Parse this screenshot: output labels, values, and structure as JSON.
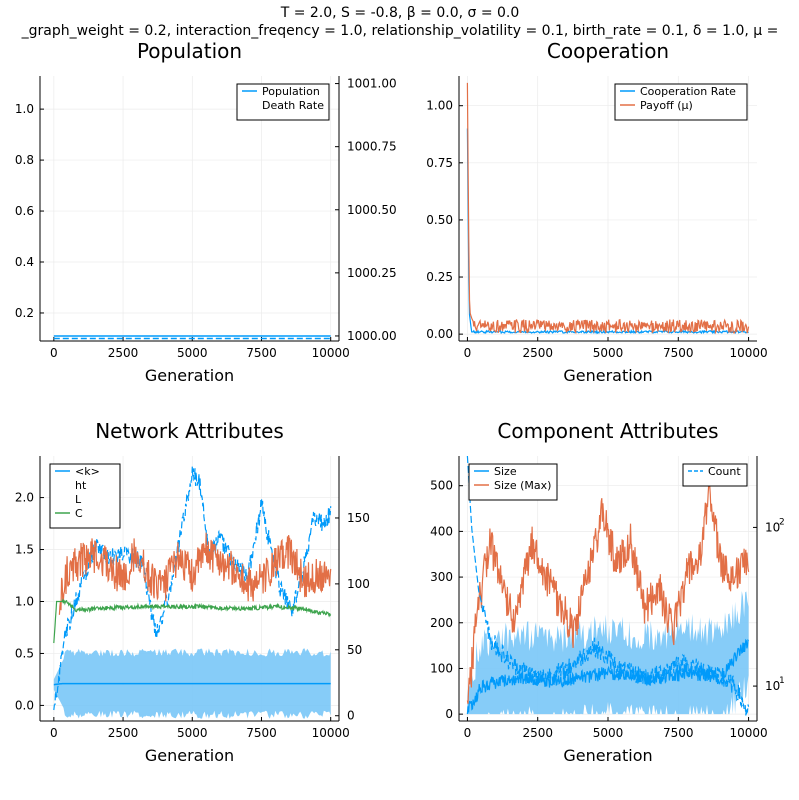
{
  "figure": {
    "suptitle_line1": "T = 2.0, S = -0.8, β = 0.0, σ = 0.0",
    "suptitle_line2": "_graph_weight = 0.2, interaction_freqency = 1.0, relationship_volatility = 0.1, birth_rate = 0.1, δ = 1.0, μ ="
  },
  "colors": {
    "blue": "#009AFA",
    "orange": "#E26F46",
    "green": "#3DA44D",
    "band": "#79C7F7",
    "grid": "#EBEBEB"
  },
  "chart_data": [
    {
      "id": "population",
      "type": "line",
      "title": "Population",
      "xlabel": "Generation",
      "xlim": [
        -500,
        10300
      ],
      "xticks": [
        0,
        2500,
        5000,
        7500,
        10000
      ],
      "ylim_left": [
        0.09,
        1.13
      ],
      "yticks_left": [
        0.2,
        0.4,
        0.6,
        0.8,
        1.0
      ],
      "ytick_labels_left": [
        "0.2",
        "0.4",
        "0.6",
        "0.8",
        "1.0"
      ],
      "ylim_right": [
        999.98,
        1001.03
      ],
      "yticks_right": [
        1000.0,
        1000.25,
        1000.5,
        1000.75,
        1001.0
      ],
      "ytick_labels_right": [
        "1000.00",
        "1000.25",
        "1000.50",
        "1000.75",
        "1001.00"
      ],
      "legend": {
        "position": "top-right",
        "entries": [
          "Population",
          "Death Rate"
        ]
      },
      "series": [
        {
          "name": "Population",
          "axis": "right",
          "style": "solid",
          "color": "#009AFA",
          "x": [
            0,
            10000
          ],
          "y": [
            1000.0,
            1000.0
          ]
        },
        {
          "name": "Death Rate",
          "axis": "left",
          "style": "dash",
          "color": "#009AFA",
          "x": [
            0,
            10000
          ],
          "y": [
            0.1,
            0.1
          ]
        }
      ]
    },
    {
      "id": "cooperation",
      "type": "line",
      "title": "Cooperation",
      "xlabel": "Generation",
      "xlim": [
        -300,
        10300
      ],
      "xticks": [
        0,
        2500,
        5000,
        7500,
        10000
      ],
      "ylim_left": [
        -0.03,
        1.13
      ],
      "yticks_left": [
        0.0,
        0.25,
        0.5,
        0.75,
        1.0
      ],
      "ytick_labels_left": [
        "0.00",
        "0.25",
        "0.50",
        "0.75",
        "1.00"
      ],
      "legend": {
        "position": "top-right",
        "entries": [
          "Cooperation Rate",
          "Payoff (μ)"
        ]
      },
      "series": [
        {
          "name": "Cooperation Rate",
          "axis": "left",
          "style": "solid",
          "color": "#009AFA",
          "base": 0.008,
          "amp": 0.01,
          "x": [
            0,
            60,
            150,
            10000
          ],
          "y": [
            0.9,
            0.1,
            0.01,
            0.01
          ]
        },
        {
          "name": "Payoff (μ)",
          "axis": "left",
          "style": "solid",
          "color": "#E26F46",
          "base": 0.022,
          "amp": 0.06,
          "x": [
            0,
            40,
            80,
            150,
            300,
            10000
          ],
          "y": [
            1.1,
            0.5,
            0.1,
            0.07,
            0.03,
            0.03
          ]
        }
      ]
    },
    {
      "id": "network",
      "type": "line",
      "title": "Network Attributes",
      "xlabel": "Generation",
      "xlim": [
        -500,
        10300
      ],
      "xticks": [
        0,
        2500,
        5000,
        7500,
        10000
      ],
      "ylim_left": [
        -0.15,
        2.4
      ],
      "yticks_left": [
        0.0,
        0.5,
        1.0,
        1.5,
        2.0
      ],
      "ytick_labels_left": [
        "0.0",
        "0.5",
        "1.0",
        "1.5",
        "2.0"
      ],
      "ylim_right": [
        -4,
        197
      ],
      "yticks_right": [
        0,
        50,
        100,
        150
      ],
      "ytick_labels_right": [
        "0",
        "50",
        "100",
        "150"
      ],
      "legend": {
        "position": "top-left",
        "entries": [
          "<k>",
          "ht",
          "L",
          "C"
        ]
      },
      "series": [
        {
          "name": "<k>",
          "axis": "left",
          "style": "solid",
          "color": "#009AFA",
          "band": [
            0.3,
            0.5
          ],
          "x": [
            0,
            300,
            1000,
            5000,
            10000
          ],
          "y": [
            0.2,
            0.21,
            0.21,
            0.21,
            0.21
          ]
        },
        {
          "name": "ht",
          "axis": "right",
          "style": "dash",
          "color": "#009AFA",
          "x": [
            0,
            400,
            1000,
            1500,
            2000,
            2600,
            3200,
            3500,
            3700,
            4200,
            4600,
            5000,
            5300,
            5600,
            6000,
            6500,
            7000,
            7500,
            7800,
            8200,
            8600,
            9000,
            9400,
            9800,
            10000
          ],
          "y": [
            5,
            60,
            100,
            130,
            120,
            125,
            115,
            80,
            60,
            95,
            140,
            185,
            175,
            120,
            135,
            115,
            105,
            160,
            130,
            95,
            80,
            110,
            150,
            145,
            155
          ]
        },
        {
          "name": "L",
          "axis": "left",
          "style": "solid",
          "color": "#E26F46",
          "x": [
            200,
            500,
            1000,
            1500,
            2000,
            2500,
            3000,
            3500,
            4000,
            4500,
            5000,
            5500,
            6000,
            6500,
            7000,
            7500,
            8000,
            8500,
            9000,
            9500,
            10000
          ],
          "y": [
            1.0,
            1.3,
            1.4,
            1.45,
            1.35,
            1.2,
            1.5,
            1.2,
            1.15,
            1.45,
            1.25,
            1.5,
            1.4,
            1.3,
            1.15,
            1.2,
            1.35,
            1.5,
            1.2,
            1.25,
            1.3
          ]
        },
        {
          "name": "C",
          "axis": "left",
          "style": "solid",
          "color": "#3DA44D",
          "x": [
            0,
            100,
            400,
            800,
            1500,
            3000,
            4000,
            5000,
            6000,
            7000,
            8000,
            9000,
            10000
          ],
          "y": [
            0.6,
            1.0,
            1.0,
            0.92,
            0.93,
            0.95,
            0.95,
            0.95,
            0.94,
            0.93,
            0.95,
            0.93,
            0.87
          ]
        }
      ]
    },
    {
      "id": "component",
      "type": "line",
      "title": "Component Attributes",
      "xlabel": "Generation",
      "xlim": [
        -300,
        10300
      ],
      "xticks": [
        0,
        2500,
        5000,
        7500,
        10000
      ],
      "ylim_left": [
        -15,
        565
      ],
      "yticks_left": [
        0,
        100,
        200,
        300,
        400,
        500
      ],
      "ytick_labels_left": [
        "0",
        "100",
        "200",
        "300",
        "400",
        "500"
      ],
      "yscale_right": "log",
      "ylim_right_log10": [
        0.78,
        2.45
      ],
      "yticks_right_log10": [
        1,
        2
      ],
      "ytick_labels_right": [
        "10",
        "10"
      ],
      "ytick_labels_right_exp": [
        "1",
        "2"
      ],
      "legend_left": {
        "position": "top-left",
        "entries": [
          "Size",
          "Size (Max)"
        ]
      },
      "legend_right": {
        "position": "top-right",
        "entries": [
          "Count"
        ]
      },
      "series": [
        {
          "name": "Size",
          "axis": "left",
          "style": "solid",
          "color": "#009AFA",
          "band": [
            60,
            130
          ],
          "x": [
            0,
            500,
            1000,
            2000,
            3000,
            4000,
            5000,
            6000,
            7000,
            8000,
            9000,
            10000
          ],
          "y": [
            5,
            60,
            70,
            80,
            70,
            80,
            90,
            80,
            80,
            90,
            80,
            160
          ]
        },
        {
          "name": "Size (Max)",
          "axis": "left",
          "style": "solid",
          "color": "#E26F46",
          "x": [
            0,
            300,
            800,
            1200,
            1700,
            2300,
            2800,
            3300,
            3800,
            4300,
            4800,
            5300,
            5800,
            6300,
            6800,
            7300,
            7800,
            8300,
            8600,
            9000,
            9500,
            10000
          ],
          "y": [
            5,
            200,
            380,
            290,
            200,
            380,
            300,
            240,
            180,
            310,
            440,
            330,
            380,
            230,
            280,
            180,
            310,
            340,
            500,
            330,
            300,
            340
          ]
        },
        {
          "name": "Count",
          "axis": "right",
          "style": "dash",
          "color": "#009AFA",
          "x_log": [
            0,
            150,
            400,
            800,
            1500,
            2500,
            3500,
            4500,
            5500,
            6500,
            7500,
            8500,
            9500,
            10000
          ],
          "y_log10": [
            2.45,
            2.0,
            1.6,
            1.3,
            1.15,
            1.05,
            1.1,
            1.25,
            1.1,
            1.05,
            1.15,
            1.1,
            1.0,
            0.82
          ]
        }
      ]
    }
  ]
}
